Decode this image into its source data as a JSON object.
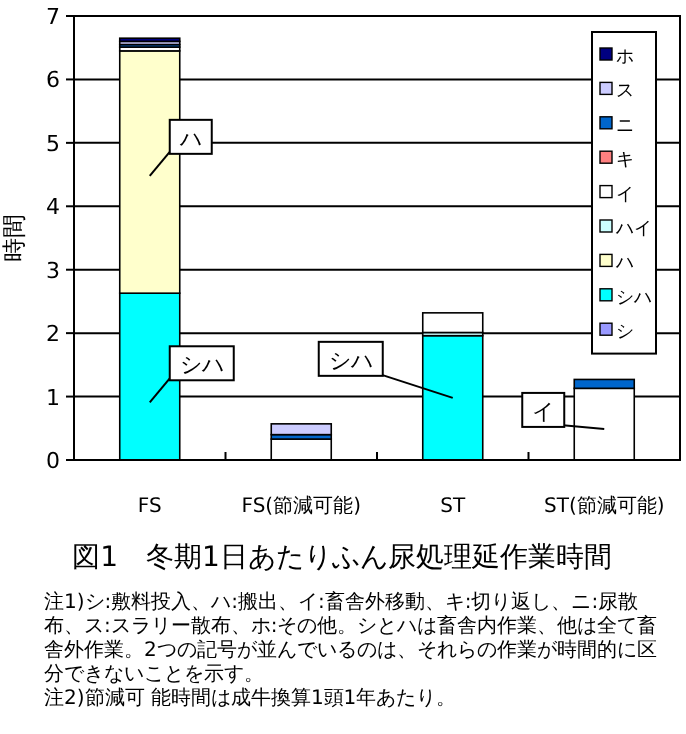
{
  "chart_data": {
    "type": "bar",
    "stacked": true,
    "title": "図1　冬期1日あたりふん尿処理延作業時間",
    "ylabel": "時間",
    "categories": [
      "FS",
      "FS(節減可能)",
      "ST",
      "ST(節減可能)"
    ],
    "series": [
      {
        "name": "シ",
        "color": "#9999ff",
        "values": [
          null,
          null,
          null,
          null
        ]
      },
      {
        "name": "シハ",
        "color": "#00ffff",
        "values": [
          2.63,
          null,
          1.96,
          null
        ]
      },
      {
        "name": "ハ",
        "color": "#ffffcc",
        "values": [
          3.82,
          null,
          null,
          null
        ]
      },
      {
        "name": "ハイ",
        "color": "#ccffff",
        "values": [
          null,
          null,
          0.05,
          null
        ]
      },
      {
        "name": "イ",
        "color": "#ffffff",
        "values": [
          0.06,
          0.33,
          0.31,
          1.13
        ]
      },
      {
        "name": "キ",
        "color": "#ff8080",
        "values": [
          null,
          null,
          null,
          null
        ]
      },
      {
        "name": "ニ",
        "color": "#0066cc",
        "values": [
          0.04,
          0.07,
          null,
          0.14
        ]
      },
      {
        "name": "ス",
        "color": "#ccccff",
        "values": [
          0.05,
          0.17,
          null,
          null
        ]
      },
      {
        "name": "ホ",
        "color": "#000080",
        "values": [
          0.05,
          null,
          null,
          null
        ]
      }
    ],
    "ylim": [
      0,
      7
    ],
    "yticks": [
      0,
      1,
      2,
      3,
      4,
      5,
      6,
      7
    ],
    "grid": "y",
    "legend": "top right",
    "annotations": [
      "ハ",
      "シハ",
      "シハ",
      "イ",
      "注1)シ:敷料投入、ハ:搬出、イ:畜舎外移動、キ:切り返し、ニ:尿散布、ス:スラリー散布、ホ:その他。シとハは畜舎内作業、他は全て畜舎外作業。2つの記号が並んでいるのは、それらの作業が時間的に区分できないことを示す。",
      "注2)節減可 能時間は成牛換算1頭1年あたり。"
    ]
  }
}
